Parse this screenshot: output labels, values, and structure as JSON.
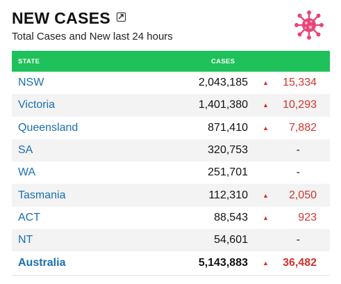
{
  "header": {
    "title": "NEW CASES",
    "subtitle": "Total Cases and New last 24 hours"
  },
  "table": {
    "columns": [
      "STATE",
      "CASES"
    ],
    "rows": [
      {
        "state": "NSW",
        "cases": "2,043,185",
        "new": "15,334",
        "arrow": "▲"
      },
      {
        "state": "Victoria",
        "cases": "1,401,380",
        "new": "10,293",
        "arrow": "▲"
      },
      {
        "state": "Queensland",
        "cases": "871,410",
        "new": "7,882",
        "arrow": "▲"
      },
      {
        "state": "SA",
        "cases": "320,753",
        "new": "-",
        "arrow": ""
      },
      {
        "state": "WA",
        "cases": "251,701",
        "new": "-",
        "arrow": ""
      },
      {
        "state": "Tasmania",
        "cases": "112,310",
        "new": "2,050",
        "arrow": "▲"
      },
      {
        "state": "ACT",
        "cases": "88,543",
        "new": "923",
        "arrow": "▲"
      },
      {
        "state": "NT",
        "cases": "54,601",
        "new": "-",
        "arrow": ""
      },
      {
        "state": "Australia",
        "cases": "5,143,883",
        "new": "36,482",
        "arrow": "▲"
      }
    ]
  },
  "colors": {
    "header_green": "#1fc15a",
    "state_link": "#1a6fb0",
    "increase_red": "#d0342c",
    "virus_pink": "#e8457a"
  },
  "icons": [
    "expand-icon",
    "virus-icon",
    "up-arrow-icon"
  ]
}
